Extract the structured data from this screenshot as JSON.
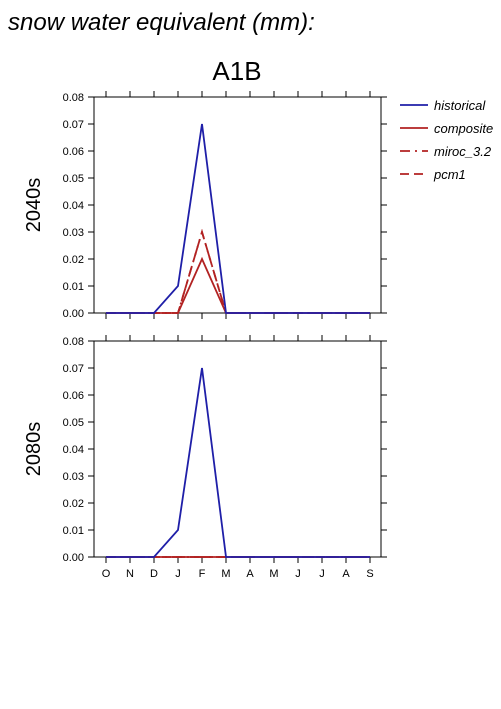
{
  "title": "snow water equivalent (mm):",
  "scenario": "A1B",
  "colors": {
    "historical": "#1f1fa8",
    "composite": "#b22222",
    "miroc": "#b22222",
    "pcm1": "#b22222"
  },
  "legend": [
    {
      "label": "historical",
      "color": "#1f1fa8",
      "dash": "solid"
    },
    {
      "label": "composite",
      "color": "#b22222",
      "dash": "solid"
    },
    {
      "label": "miroc_3.2",
      "color": "#b22222",
      "dash": "dashdot"
    },
    {
      "label": "pcm1",
      "color": "#b22222",
      "dash": "dashed"
    }
  ],
  "chart_data": [
    {
      "type": "line",
      "panel_label": "2040s",
      "categories": [
        "O",
        "N",
        "D",
        "J",
        "F",
        "M",
        "A",
        "M",
        "J",
        "J",
        "A",
        "S"
      ],
      "ylim": [
        0,
        0.08
      ],
      "yticks": [
        "0.00",
        "0.01",
        "0.02",
        "0.03",
        "0.04",
        "0.05",
        "0.06",
        "0.07",
        "0.08"
      ],
      "series": [
        {
          "name": "historical",
          "values": [
            0,
            0,
            0,
            0.01,
            0.07,
            0,
            0,
            0,
            0,
            0,
            0,
            0
          ]
        },
        {
          "name": "composite",
          "values": [
            0,
            0,
            0,
            0,
            0.02,
            0,
            0,
            0,
            0,
            0,
            0,
            0
          ]
        },
        {
          "name": "miroc_3.2",
          "values": [
            0,
            0,
            0,
            0,
            0.03,
            0,
            0,
            0,
            0,
            0,
            0,
            0
          ]
        },
        {
          "name": "pcm1",
          "values": [
            0,
            0,
            0,
            0,
            0.03,
            0,
            0,
            0,
            0,
            0,
            0,
            0
          ]
        }
      ]
    },
    {
      "type": "line",
      "panel_label": "2080s",
      "categories": [
        "O",
        "N",
        "D",
        "J",
        "F",
        "M",
        "A",
        "M",
        "J",
        "J",
        "A",
        "S"
      ],
      "ylim": [
        0,
        0.08
      ],
      "yticks": [
        "0.00",
        "0.01",
        "0.02",
        "0.03",
        "0.04",
        "0.05",
        "0.06",
        "0.07",
        "0.08"
      ],
      "series": [
        {
          "name": "historical",
          "values": [
            0,
            0,
            0,
            0.01,
            0.07,
            0,
            0,
            0,
            0,
            0,
            0,
            0
          ]
        },
        {
          "name": "composite",
          "values": [
            0,
            0,
            0,
            0,
            0,
            0,
            0,
            0,
            0,
            0,
            0,
            0
          ]
        },
        {
          "name": "miroc_3.2",
          "values": [
            0,
            0,
            0,
            0,
            0,
            0,
            0,
            0,
            0,
            0,
            0,
            0
          ]
        },
        {
          "name": "pcm1",
          "values": [
            0,
            0,
            0,
            0,
            0,
            0,
            0,
            0,
            0,
            0,
            0,
            0
          ]
        }
      ]
    }
  ]
}
